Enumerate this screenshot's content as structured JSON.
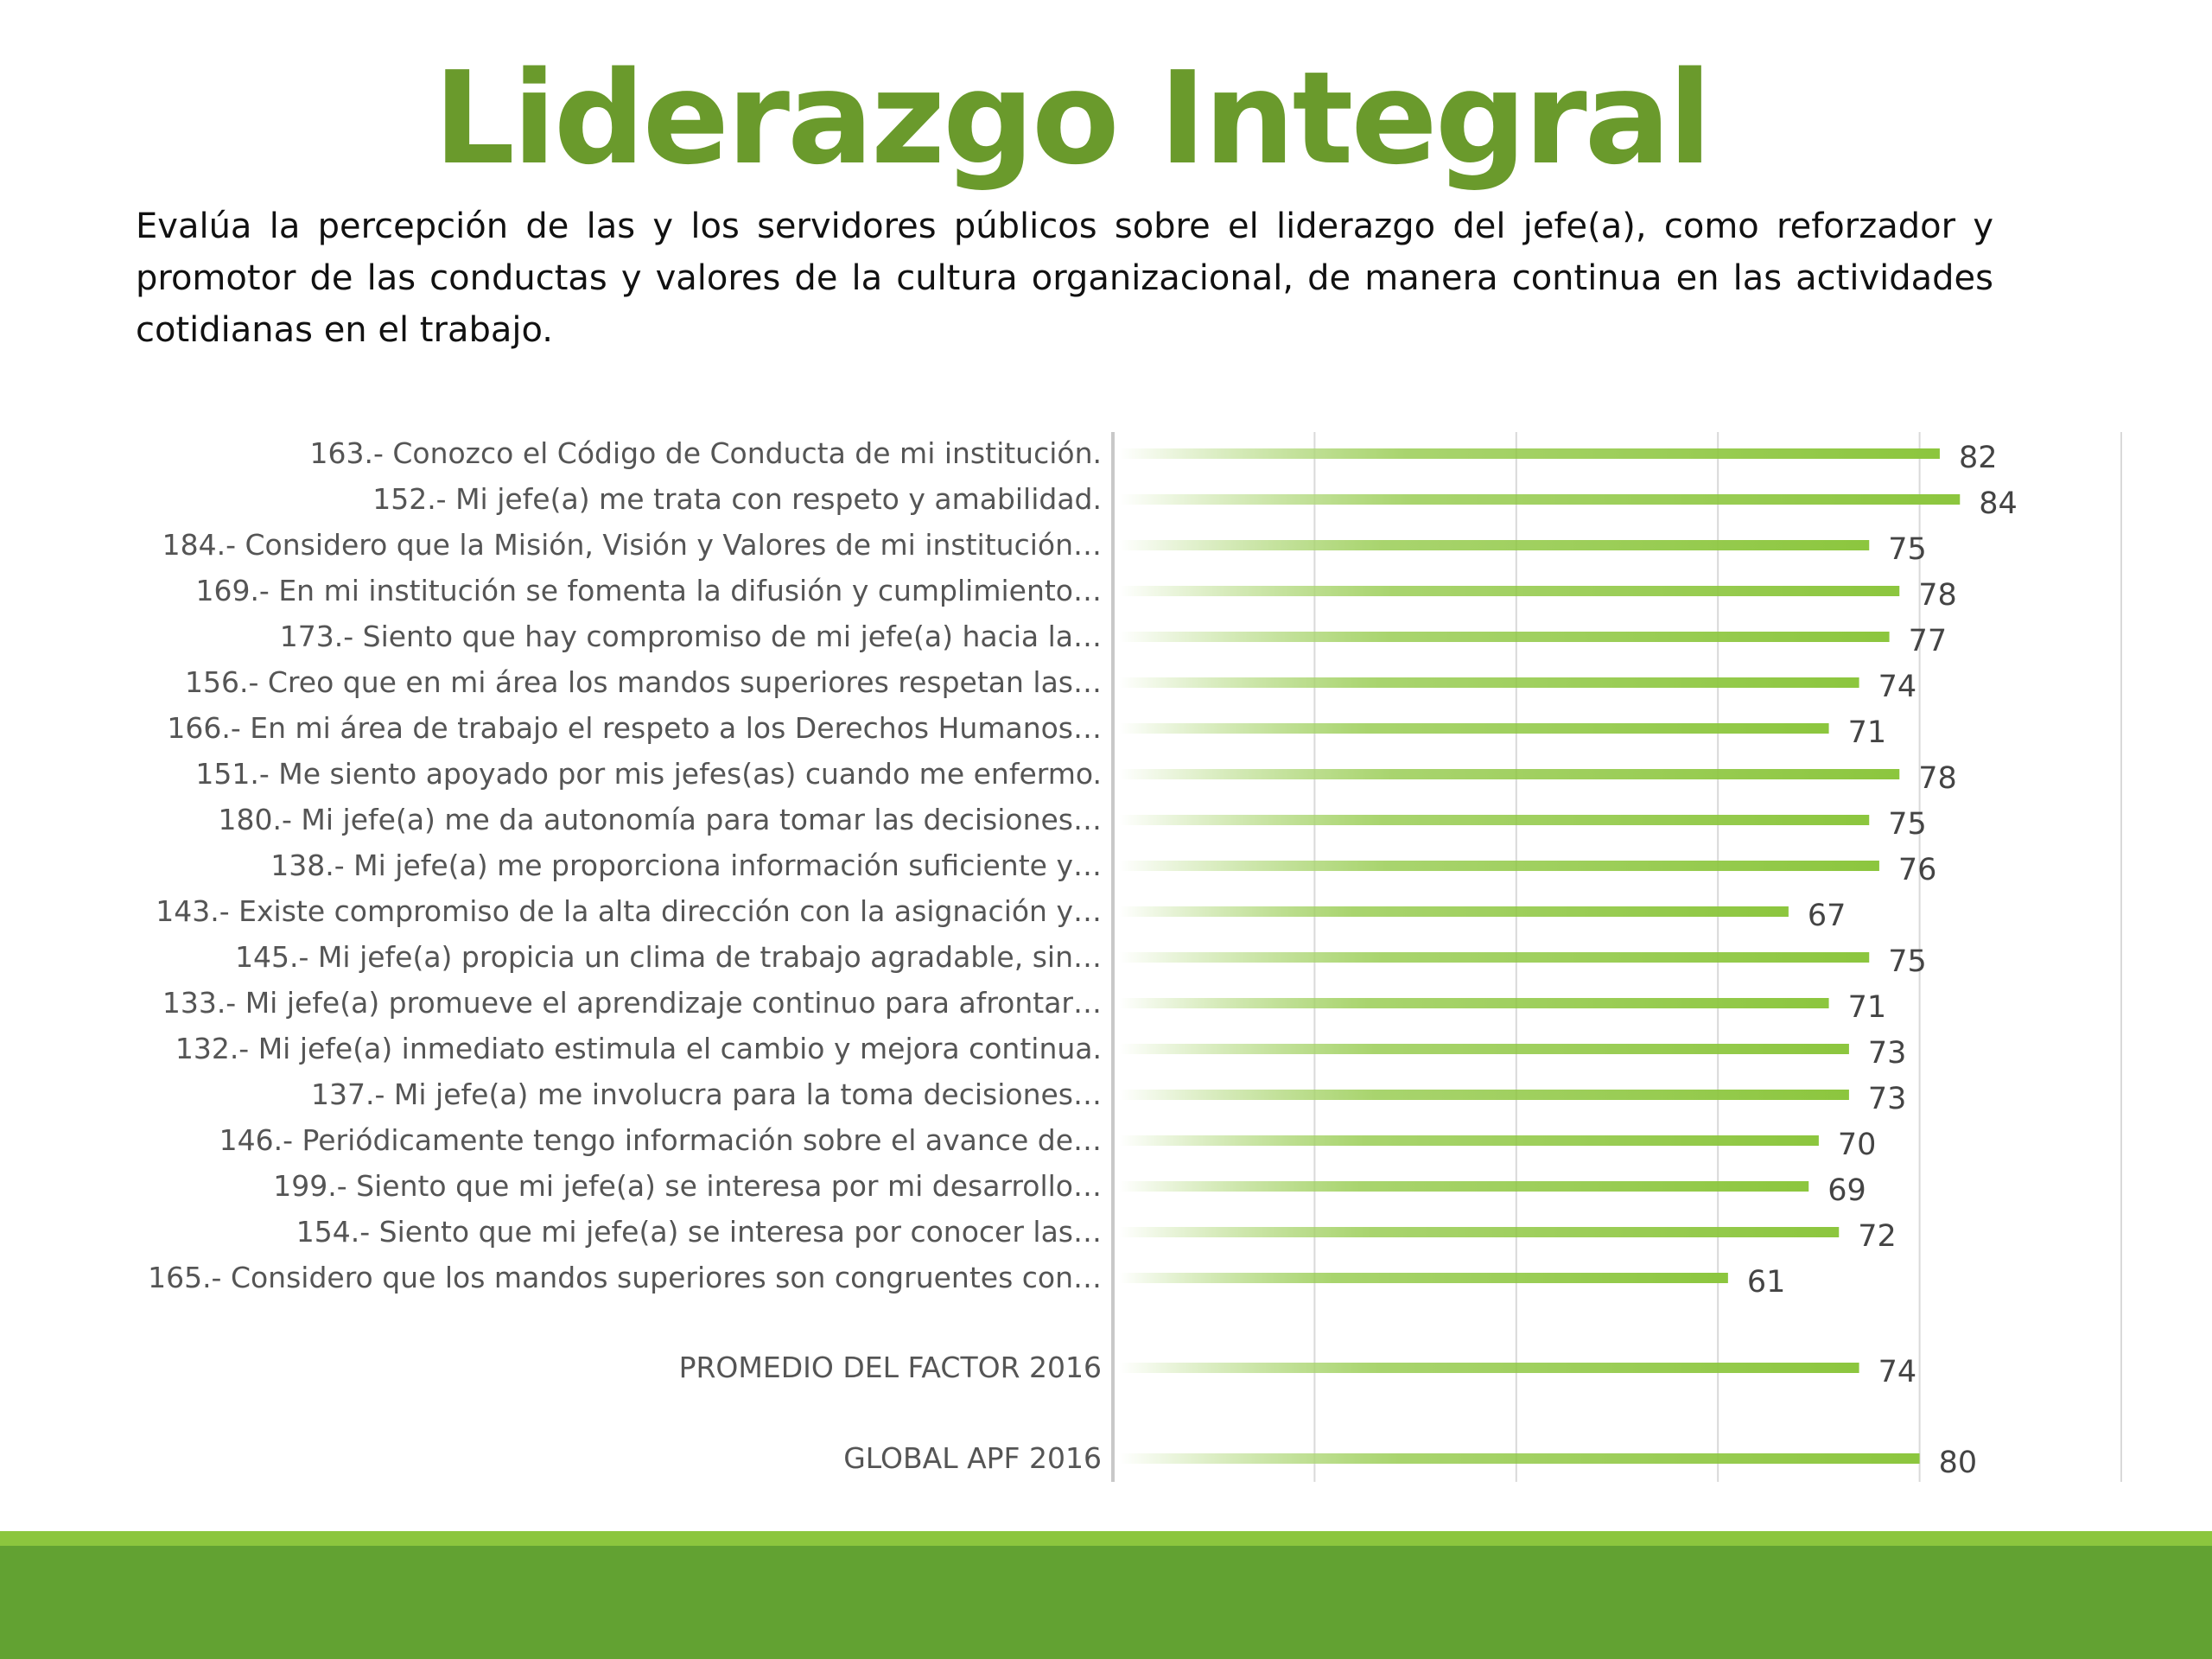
{
  "title": "Liderazgo Integral",
  "description": "Evalúa la percepción de las y los servidores públicos sobre el liderazgo del jefe(a), como reforzador y promotor de las conductas y valores de la cultura organizacional, de manera continua en las actividades cotidianas en el trabajo.",
  "colors": {
    "title": "#6a9a2c",
    "bar": "#8cc63e",
    "bar_fade": "#ffffff",
    "band_light": "#8cc63e",
    "band_dark": "#62a232"
  },
  "chart_data": {
    "type": "bar",
    "orientation": "horizontal",
    "categories": [
      "163.- Conozco el Código de Conducta de mi institución.",
      "152.- Mi jefe(a) me trata con respeto y amabilidad.",
      "184.- Considero que la Misión, Visión y Valores de mi institución…",
      "169.- En mi institución se fomenta la difusión y cumplimiento…",
      "173.- Siento que hay compromiso de mi jefe(a) hacia la…",
      "156.- Creo que en mi área los mandos superiores respetan las…",
      "166.- En mi área de trabajo el respeto a los Derechos Humanos…",
      "151.- Me siento apoyado por mis jefes(as) cuando me enfermo.",
      "180.- Mi jefe(a) me da autonomía para tomar las decisiones…",
      "138.- Mi jefe(a) me proporciona información suficiente y…",
      "143.- Existe compromiso de la alta dirección con la asignación y…",
      "145.- Mi jefe(a) propicia un clima de trabajo agradable, sin…",
      "133.- Mi jefe(a) promueve el aprendizaje continuo para afrontar…",
      "132.- Mi jefe(a) inmediato estimula el cambio y mejora continua.",
      "137.- Mi jefe(a) me involucra para la toma decisiones…",
      "146.- Periódicamente tengo información sobre el avance de…",
      "199.- Siento que mi jefe(a) se interesa por mi desarrollo…",
      "154.- Siento que mi jefe(a) se interesa por conocer las…",
      "165.- Considero que los mandos superiores son congruentes con…"
    ],
    "values": [
      82,
      84,
      75,
      78,
      77,
      74,
      71,
      78,
      75,
      76,
      67,
      75,
      71,
      73,
      73,
      70,
      69,
      72,
      61
    ],
    "summary": [
      {
        "label": "PROMEDIO DEL FACTOR   2016",
        "value": 74
      },
      {
        "label": "GLOBAL APF   2016",
        "value": 80
      }
    ],
    "xlim": [
      0,
      100
    ],
    "grid": true
  }
}
